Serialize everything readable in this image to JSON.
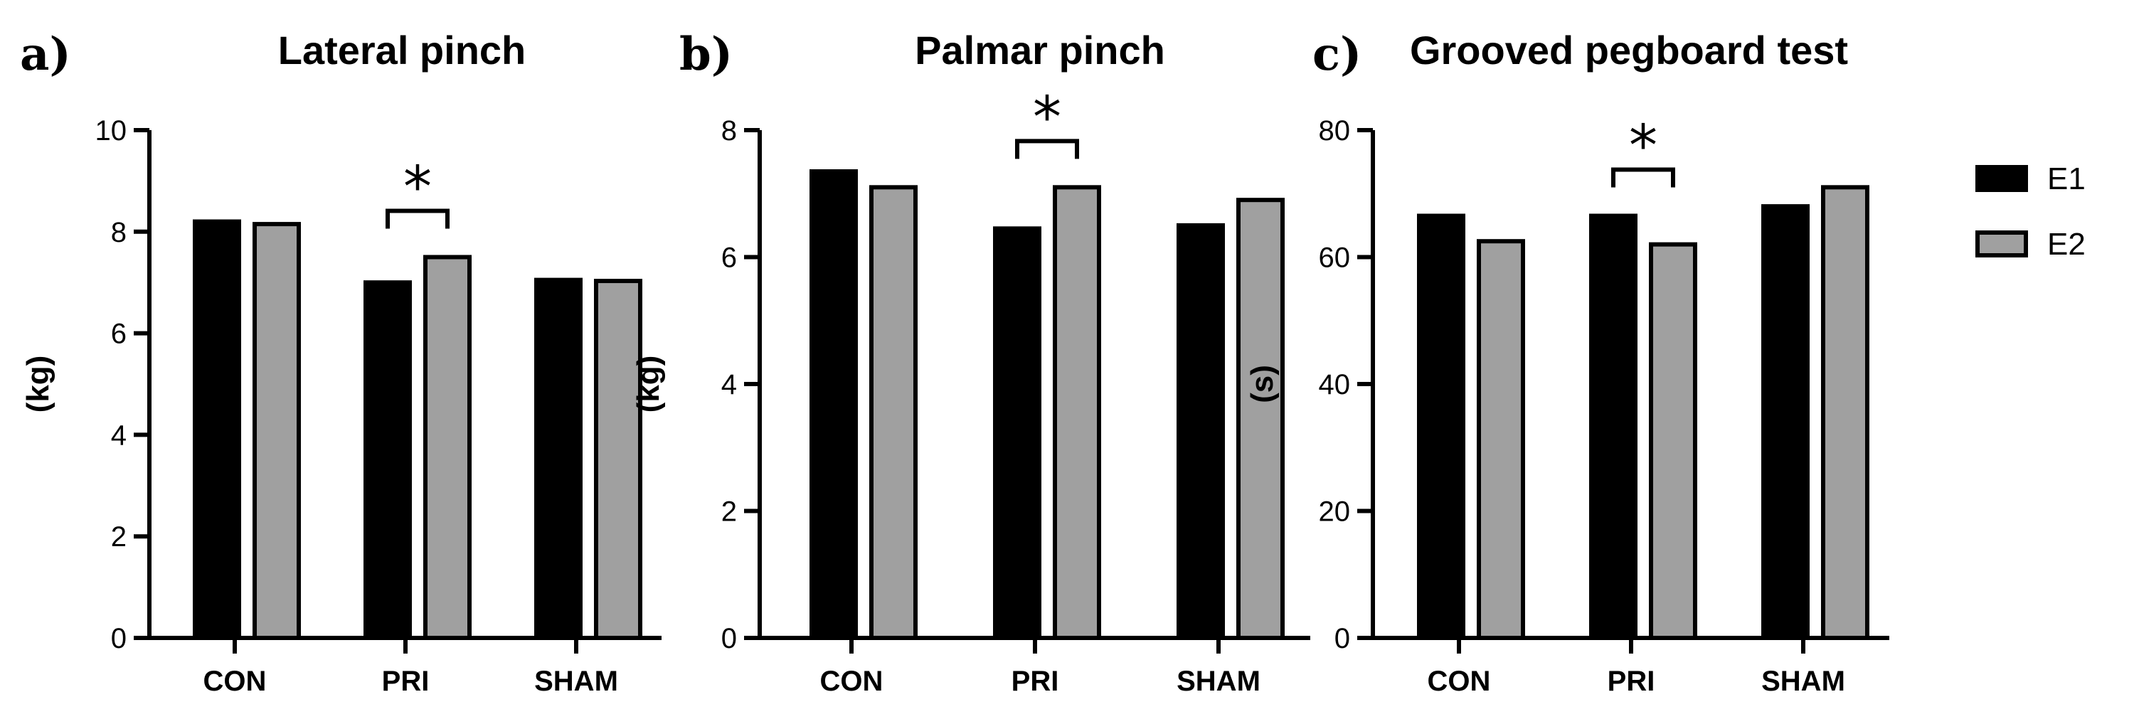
{
  "colors": {
    "E1": "#000000",
    "E2": "#a0a0a0",
    "edge": "#000000"
  },
  "legend": [
    {
      "name": "E1",
      "color": "#000000"
    },
    {
      "name": "E2",
      "color": "#a0a0a0"
    }
  ],
  "chart_data": [
    {
      "type": "bar",
      "panel": "a)",
      "title": "Lateral pinch",
      "ylabel": "(kg)",
      "ylim": [
        0,
        10
      ],
      "yticks": [
        0,
        2,
        4,
        6,
        8,
        10
      ],
      "categories": [
        "CON",
        "PRI",
        "SHAM"
      ],
      "series": [
        {
          "name": "E1",
          "values": [
            8.2,
            7.0,
            7.05
          ]
        },
        {
          "name": "E2",
          "values": [
            8.15,
            7.5,
            7.03
          ]
        }
      ],
      "annotations": [
        {
          "text": "*",
          "category": "PRI"
        }
      ]
    },
    {
      "type": "bar",
      "panel": "b)",
      "title": "Palmar pinch",
      "ylabel": "(kg)",
      "ylim": [
        0,
        8
      ],
      "yticks": [
        0,
        2,
        4,
        6,
        8
      ],
      "categories": [
        "CON",
        "PRI",
        "SHAM"
      ],
      "series": [
        {
          "name": "E1",
          "values": [
            7.35,
            6.45,
            6.5
          ]
        },
        {
          "name": "E2",
          "values": [
            7.1,
            7.1,
            6.9
          ]
        }
      ],
      "annotations": [
        {
          "text": "*",
          "category": "PRI"
        }
      ]
    },
    {
      "type": "bar",
      "panel": "c)",
      "title": "Grooved pegboard test",
      "ylabel": "(s)",
      "ylim": [
        0,
        80
      ],
      "yticks": [
        0,
        20,
        40,
        60,
        80
      ],
      "categories": [
        "CON",
        "PRI",
        "SHAM"
      ],
      "series": [
        {
          "name": "E1",
          "values": [
            66.5,
            66.5,
            68
          ]
        },
        {
          "name": "E2",
          "values": [
            62.5,
            62,
            71
          ]
        }
      ],
      "annotations": [
        {
          "text": "*",
          "category": "PRI"
        }
      ]
    }
  ]
}
